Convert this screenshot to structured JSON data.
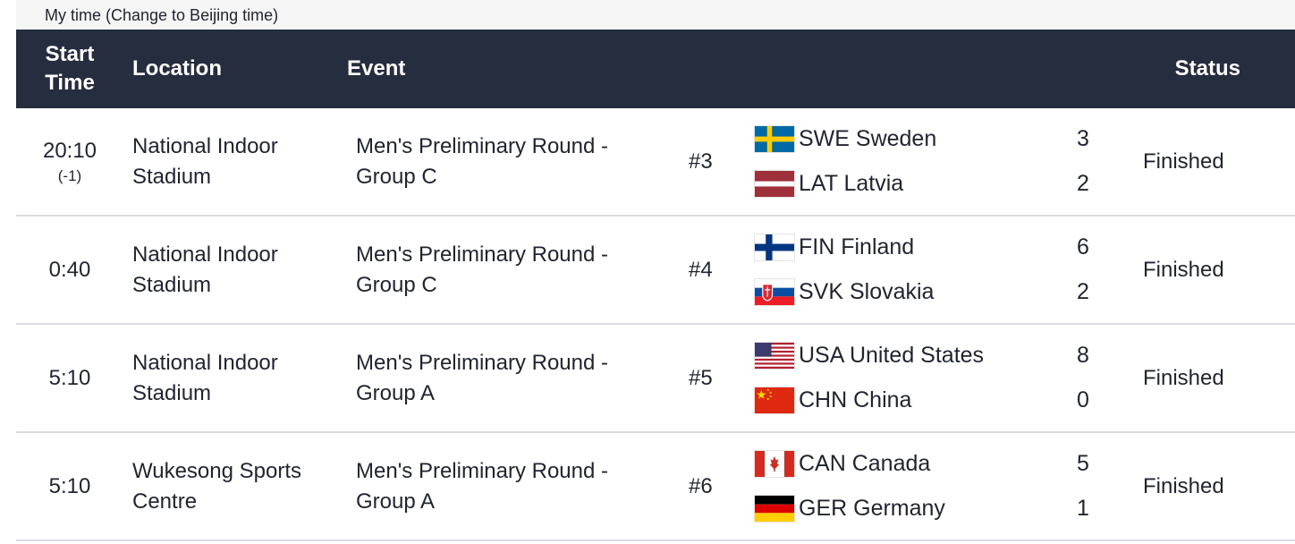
{
  "timezone": {
    "text": "My time (Change to Beijing time)"
  },
  "header": {
    "start_line1": "Start",
    "start_line2": "Time",
    "location": "Location",
    "event": "Event",
    "status": "Status"
  },
  "rows": [
    {
      "time": "20:10",
      "offset": "(-1)",
      "location_line1": "National Indoor",
      "location_line2": "Stadium",
      "event_line1": "Men's Preliminary Round -",
      "event_line2": "Group C",
      "match": "#3",
      "team1": {
        "name": "SWE Sweden",
        "score": "3",
        "flag": "sweden-flag-icon"
      },
      "team2": {
        "name": "LAT Latvia",
        "score": "2",
        "flag": "latvia-flag-icon"
      },
      "status": "Finished"
    },
    {
      "time": "0:40",
      "offset": "",
      "location_line1": "National Indoor",
      "location_line2": "Stadium",
      "event_line1": "Men's Preliminary Round -",
      "event_line2": "Group C",
      "match": "#4",
      "team1": {
        "name": "FIN Finland",
        "score": "6",
        "flag": "finland-flag-icon"
      },
      "team2": {
        "name": "SVK Slovakia",
        "score": "2",
        "flag": "slovakia-flag-icon"
      },
      "status": "Finished"
    },
    {
      "time": "5:10",
      "offset": "",
      "location_line1": "National Indoor",
      "location_line2": "Stadium",
      "event_line1": "Men's Preliminary Round -",
      "event_line2": "Group A",
      "match": "#5",
      "team1": {
        "name": "USA United States",
        "score": "8",
        "flag": "usa-flag-icon"
      },
      "team2": {
        "name": "CHN China",
        "score": "0",
        "flag": "china-flag-icon"
      },
      "status": "Finished"
    },
    {
      "time": "5:10",
      "offset": "",
      "location_line1": "Wukesong Sports",
      "location_line2": "Centre",
      "event_line1": "Men's Preliminary Round -",
      "event_line2": "Group A",
      "match": "#6",
      "team1": {
        "name": "CAN Canada",
        "score": "5",
        "flag": "canada-flag-icon"
      },
      "team2": {
        "name": "GER Germany",
        "score": "1",
        "flag": "germany-flag-icon"
      },
      "status": "Finished"
    }
  ],
  "colors": {
    "header_bg": "#262d3e",
    "timezone_bg": "#f5f5f5",
    "row_divider": "#d9dbe0"
  }
}
